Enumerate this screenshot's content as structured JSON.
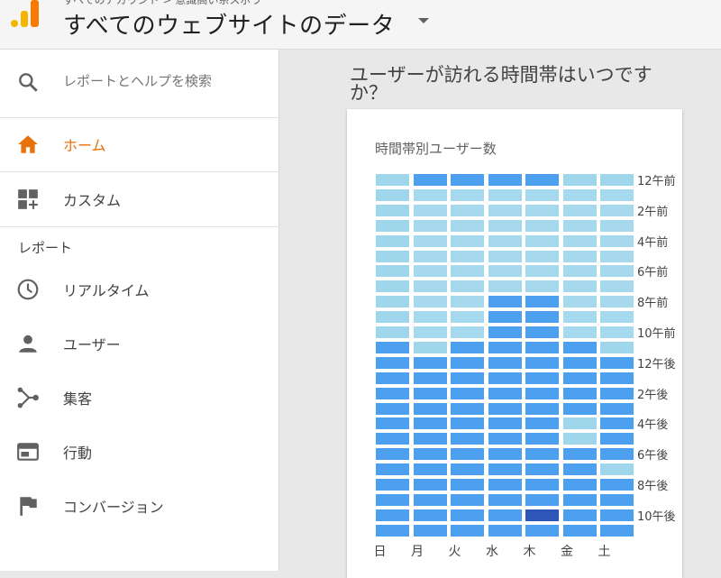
{
  "header": {
    "account_line": "すべてのアカウント > 意識高い系スポラ",
    "property_title": "すべてのウェブサイトのデータ"
  },
  "sidebar": {
    "search_label": "レポートとヘルプを検索",
    "home_label": "ホーム",
    "custom_label": "カスタム",
    "section_label": "レポート",
    "items": [
      {
        "label": "リアルタイム",
        "icon": "clock-icon"
      },
      {
        "label": "ユーザー",
        "icon": "person-icon"
      },
      {
        "label": "集客",
        "icon": "acquisition-icon"
      },
      {
        "label": "行動",
        "icon": "behavior-icon"
      },
      {
        "label": "コンバージョン",
        "icon": "flag-icon"
      }
    ],
    "accent_color": "#e8710a"
  },
  "main": {
    "question": "ユーザーが訪れる時間帯はいつですか？"
  },
  "chart_data": {
    "type": "heatmap",
    "title": "時間帯別ユーザー数",
    "days": [
      "日",
      "月",
      "火",
      "水",
      "木",
      "金",
      "土"
    ],
    "hour_labels": [
      "12午前",
      "2午前",
      "4午前",
      "6午前",
      "8午前",
      "10午前",
      "12午後",
      "2午後",
      "4午後",
      "6午後",
      "8午後",
      "10午後"
    ],
    "levels_description": "0 = lightest, 4 = darkest",
    "colors": [
      "#9fd6ec",
      "#a6d8ee",
      "#8cc7f0",
      "#4ca0ef",
      "#2d56b8"
    ],
    "matrix": [
      [
        0,
        3,
        3,
        3,
        3,
        0,
        0
      ],
      [
        0,
        1,
        1,
        1,
        1,
        1,
        1
      ],
      [
        0,
        1,
        1,
        1,
        1,
        1,
        1
      ],
      [
        0,
        1,
        1,
        1,
        1,
        1,
        1
      ],
      [
        0,
        1,
        1,
        1,
        1,
        1,
        1
      ],
      [
        0,
        1,
        1,
        1,
        1,
        1,
        1
      ],
      [
        0,
        1,
        1,
        1,
        1,
        1,
        1
      ],
      [
        0,
        1,
        1,
        1,
        1,
        1,
        1
      ],
      [
        0,
        1,
        1,
        3,
        3,
        1,
        1
      ],
      [
        0,
        1,
        1,
        3,
        3,
        1,
        1
      ],
      [
        0,
        1,
        1,
        3,
        3,
        1,
        1
      ],
      [
        3,
        0,
        3,
        3,
        3,
        3,
        0
      ],
      [
        3,
        3,
        3,
        3,
        3,
        3,
        3
      ],
      [
        3,
        3,
        3,
        3,
        3,
        3,
        3
      ],
      [
        3,
        3,
        3,
        3,
        3,
        3,
        3
      ],
      [
        3,
        3,
        3,
        3,
        3,
        3,
        3
      ],
      [
        3,
        3,
        3,
        3,
        3,
        0,
        3
      ],
      [
        3,
        3,
        3,
        3,
        3,
        0,
        3
      ],
      [
        3,
        3,
        3,
        3,
        3,
        3,
        3
      ],
      [
        3,
        3,
        3,
        3,
        3,
        3,
        0
      ],
      [
        3,
        3,
        3,
        3,
        3,
        3,
        3
      ],
      [
        3,
        3,
        3,
        3,
        3,
        3,
        3
      ],
      [
        3,
        3,
        3,
        3,
        4,
        3,
        3
      ],
      [
        3,
        3,
        3,
        3,
        3,
        3,
        3
      ]
    ]
  }
}
